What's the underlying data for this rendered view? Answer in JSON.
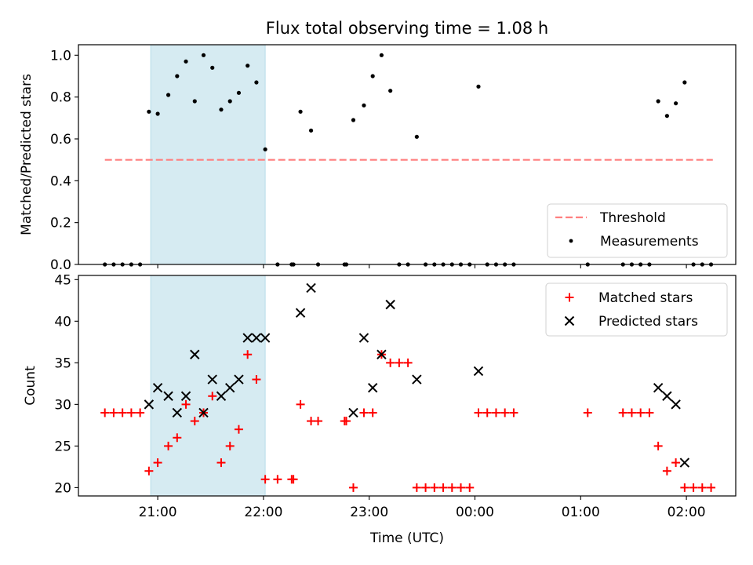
{
  "chart_data": [
    {
      "type": "scatter",
      "title": "Flux total observing time = 1.08 h",
      "ylabel": "Matched/Predicted stars",
      "xlabel": "",
      "ylim": [
        0.0,
        1.05
      ],
      "yticks": [
        "0.0",
        "0.2",
        "0.4",
        "0.6",
        "0.8",
        "1.0"
      ],
      "grid": false,
      "legend_position": "lower right",
      "highlight_span": [
        "20:56",
        "22:01"
      ],
      "threshold": {
        "name": "Threshold",
        "value": 0.5,
        "x_range": [
          "20:30",
          "02:15"
        ],
        "color": "#ff7f7f"
      },
      "series": [
        {
          "name": "Measurements",
          "color": "#000000",
          "points": [
            [
              "20:30",
              0.0
            ],
            [
              "20:35",
              0.0
            ],
            [
              "20:40",
              0.0
            ],
            [
              "20:45",
              0.0
            ],
            [
              "20:50",
              0.0
            ],
            [
              "20:55",
              0.73
            ],
            [
              "21:00",
              0.72
            ],
            [
              "21:06",
              0.81
            ],
            [
              "21:11",
              0.9
            ],
            [
              "21:16",
              0.97
            ],
            [
              "21:21",
              0.78
            ],
            [
              "21:26",
              1.0
            ],
            [
              "21:31",
              0.94
            ],
            [
              "21:36",
              0.74
            ],
            [
              "21:41",
              0.78
            ],
            [
              "21:46",
              0.82
            ],
            [
              "21:51",
              0.95
            ],
            [
              "21:56",
              0.87
            ],
            [
              "22:01",
              0.55
            ],
            [
              "22:08",
              0.0
            ],
            [
              "22:16",
              0.0
            ],
            [
              "22:17",
              0.0
            ],
            [
              "22:21",
              0.73
            ],
            [
              "22:27",
              0.64
            ],
            [
              "22:31",
              0.0
            ],
            [
              "22:46",
              0.0
            ],
            [
              "22:47",
              0.0
            ],
            [
              "22:51",
              0.69
            ],
            [
              "22:57",
              0.76
            ],
            [
              "23:02",
              0.9
            ],
            [
              "23:07",
              1.0
            ],
            [
              "23:12",
              0.83
            ],
            [
              "23:17",
              0.0
            ],
            [
              "23:22",
              0.0
            ],
            [
              "23:27",
              0.61
            ],
            [
              "23:32",
              0.0
            ],
            [
              "23:37",
              0.0
            ],
            [
              "23:42",
              0.0
            ],
            [
              "23:47",
              0.0
            ],
            [
              "23:52",
              0.0
            ],
            [
              "23:57",
              0.0
            ],
            [
              "00:02",
              0.85
            ],
            [
              "00:07",
              0.0
            ],
            [
              "00:12",
              0.0
            ],
            [
              "00:17",
              0.0
            ],
            [
              "00:22",
              0.0
            ],
            [
              "01:04",
              0.0
            ],
            [
              "01:24",
              0.0
            ],
            [
              "01:29",
              0.0
            ],
            [
              "01:34",
              0.0
            ],
            [
              "01:39",
              0.0
            ],
            [
              "01:44",
              0.78
            ],
            [
              "01:49",
              0.71
            ],
            [
              "01:54",
              0.77
            ],
            [
              "01:59",
              0.87
            ],
            [
              "02:04",
              0.0
            ],
            [
              "02:09",
              0.0
            ],
            [
              "02:14",
              0.0
            ]
          ]
        }
      ]
    },
    {
      "type": "scatter",
      "title": "",
      "ylabel": "Count",
      "xlabel": "Time (UTC)",
      "ylim": [
        19,
        45.5
      ],
      "yticks": [
        "20",
        "25",
        "30",
        "35",
        "40",
        "45"
      ],
      "xlim": [
        "20:15",
        "02:28"
      ],
      "xticks": [
        "21:00",
        "22:00",
        "23:00",
        "00:00",
        "01:00",
        "02:00"
      ],
      "grid": false,
      "legend_position": "upper right",
      "highlight_span": [
        "20:56",
        "22:01"
      ],
      "series": [
        {
          "name": "Matched stars",
          "marker": "+",
          "color": "#ff0000",
          "points": [
            [
              "20:30",
              29
            ],
            [
              "20:35",
              29
            ],
            [
              "20:40",
              29
            ],
            [
              "20:45",
              29
            ],
            [
              "20:50",
              29
            ],
            [
              "20:55",
              22
            ],
            [
              "21:00",
              23
            ],
            [
              "21:06",
              25
            ],
            [
              "21:11",
              26
            ],
            [
              "21:16",
              30
            ],
            [
              "21:21",
              28
            ],
            [
              "21:26",
              29
            ],
            [
              "21:31",
              31
            ],
            [
              "21:36",
              23
            ],
            [
              "21:41",
              25
            ],
            [
              "21:46",
              27
            ],
            [
              "21:51",
              36
            ],
            [
              "21:56",
              33
            ],
            [
              "22:01",
              21
            ],
            [
              "22:08",
              21
            ],
            [
              "22:16",
              21
            ],
            [
              "22:17",
              21
            ],
            [
              "22:21",
              30
            ],
            [
              "22:27",
              28
            ],
            [
              "22:31",
              28
            ],
            [
              "22:46",
              28
            ],
            [
              "22:47",
              28
            ],
            [
              "22:51",
              20
            ],
            [
              "22:57",
              29
            ],
            [
              "23:02",
              29
            ],
            [
              "23:07",
              36
            ],
            [
              "23:12",
              35
            ],
            [
              "23:17",
              35
            ],
            [
              "23:22",
              35
            ],
            [
              "23:27",
              20
            ],
            [
              "23:32",
              20
            ],
            [
              "23:37",
              20
            ],
            [
              "23:42",
              20
            ],
            [
              "23:47",
              20
            ],
            [
              "23:52",
              20
            ],
            [
              "23:57",
              20
            ],
            [
              "00:02",
              29
            ],
            [
              "00:07",
              29
            ],
            [
              "00:12",
              29
            ],
            [
              "00:17",
              29
            ],
            [
              "00:22",
              29
            ],
            [
              "01:04",
              29
            ],
            [
              "01:24",
              29
            ],
            [
              "01:29",
              29
            ],
            [
              "01:34",
              29
            ],
            [
              "01:39",
              29
            ],
            [
              "01:44",
              25
            ],
            [
              "01:49",
              22
            ],
            [
              "01:54",
              23
            ],
            [
              "01:59",
              20
            ],
            [
              "02:04",
              20
            ],
            [
              "02:09",
              20
            ],
            [
              "02:14",
              20
            ]
          ]
        },
        {
          "name": "Predicted stars",
          "marker": "x",
          "color": "#000000",
          "points": [
            [
              "20:55",
              30
            ],
            [
              "21:00",
              32
            ],
            [
              "21:06",
              31
            ],
            [
              "21:11",
              29
            ],
            [
              "21:16",
              31
            ],
            [
              "21:21",
              36
            ],
            [
              "21:26",
              29
            ],
            [
              "21:31",
              33
            ],
            [
              "21:36",
              31
            ],
            [
              "21:41",
              32
            ],
            [
              "21:46",
              33
            ],
            [
              "21:51",
              38
            ],
            [
              "21:56",
              38
            ],
            [
              "22:01",
              38
            ],
            [
              "22:21",
              41
            ],
            [
              "22:27",
              44
            ],
            [
              "22:51",
              29
            ],
            [
              "22:57",
              38
            ],
            [
              "23:02",
              32
            ],
            [
              "23:07",
              36
            ],
            [
              "23:12",
              42
            ],
            [
              "23:27",
              33
            ],
            [
              "00:02",
              34
            ],
            [
              "01:44",
              32
            ],
            [
              "01:49",
              31
            ],
            [
              "01:54",
              30
            ],
            [
              "01:59",
              23
            ]
          ]
        }
      ]
    }
  ]
}
